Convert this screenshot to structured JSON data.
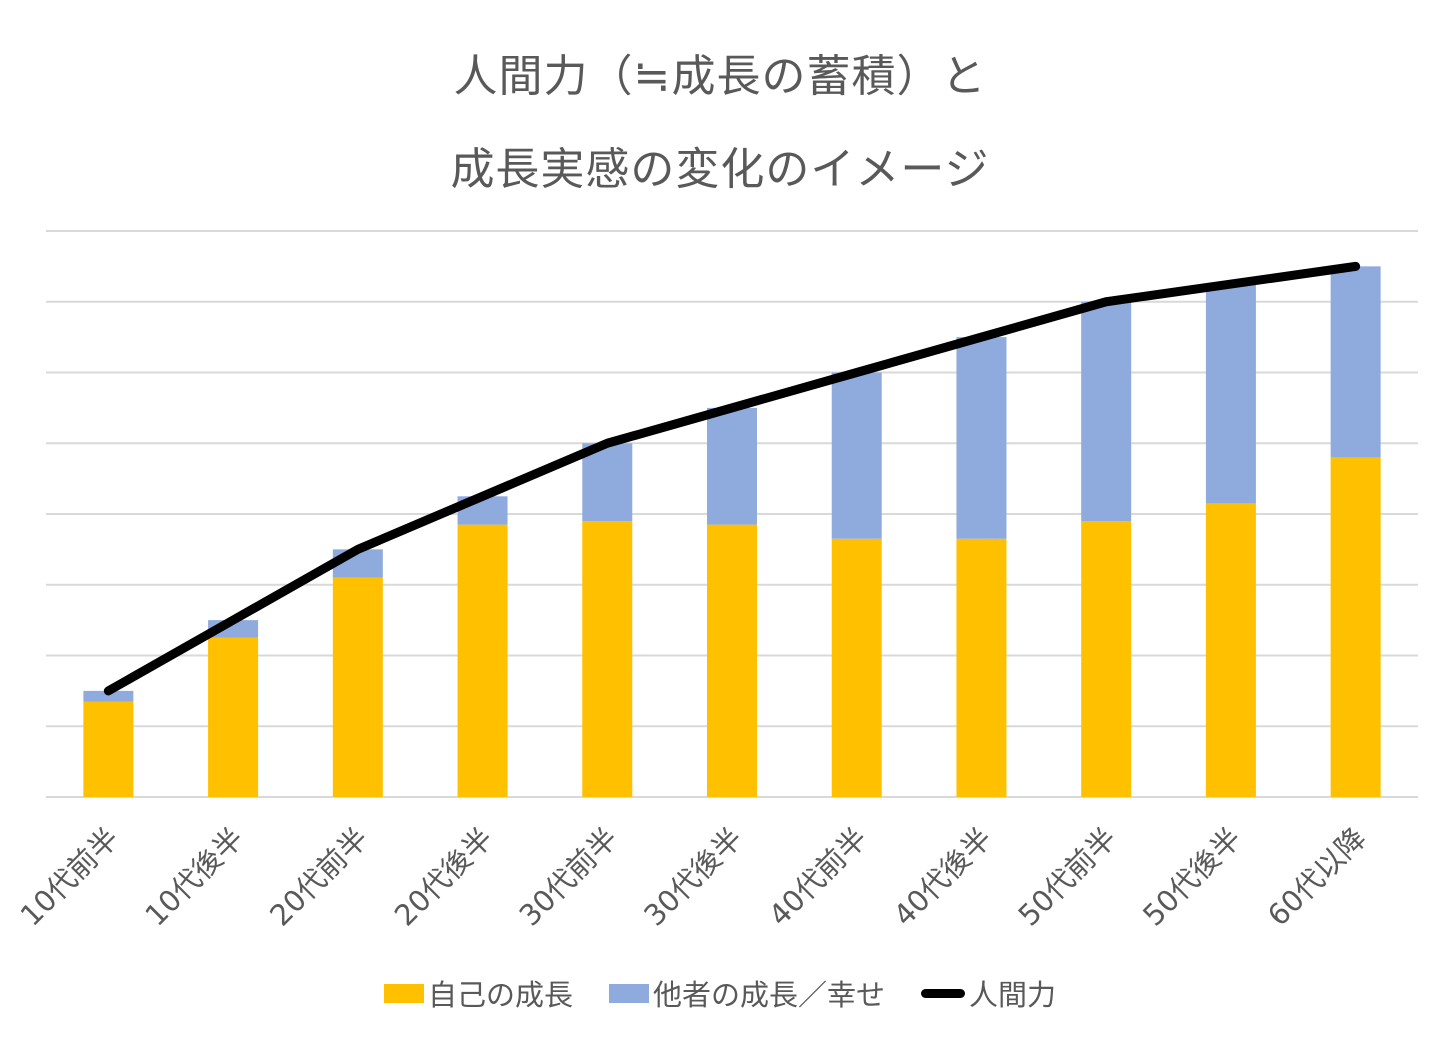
{
  "chart_data": {
    "type": "bar",
    "stacked": true,
    "title": [
      "人間力（≒成長の蓄積）と",
      "成長実感の変化のイメージ"
    ],
    "xlabel": "",
    "ylabel": "",
    "categories": [
      "10代前半",
      "10代後半",
      "20代前半",
      "20代後半",
      "30代前半",
      "30代後半",
      "40代前半",
      "40代後半",
      "50代前半",
      "50代後半",
      "60代以降"
    ],
    "ylim": [
      0,
      8
    ],
    "gridlines": true,
    "y_tick_labels_visible": false,
    "series": [
      {
        "name": "自己の成長",
        "type": "bar",
        "color": "#ffc000",
        "values": [
          1.35,
          2.25,
          3.1,
          3.85,
          3.9,
          3.85,
          3.65,
          3.65,
          3.9,
          4.15,
          4.8
        ]
      },
      {
        "name": "他者の成長／幸せ",
        "type": "bar",
        "color": "#8faadc",
        "values": [
          0.15,
          0.25,
          0.4,
          0.4,
          1.1,
          1.65,
          2.35,
          2.85,
          3.1,
          3.1,
          2.7
        ]
      },
      {
        "name": "人間力",
        "type": "line",
        "color": "#000000",
        "values": [
          1.5,
          2.5,
          3.5,
          4.25,
          5.0,
          5.5,
          6.0,
          6.5,
          7.0,
          7.25,
          7.5
        ]
      }
    ],
    "legend": "bottom"
  }
}
